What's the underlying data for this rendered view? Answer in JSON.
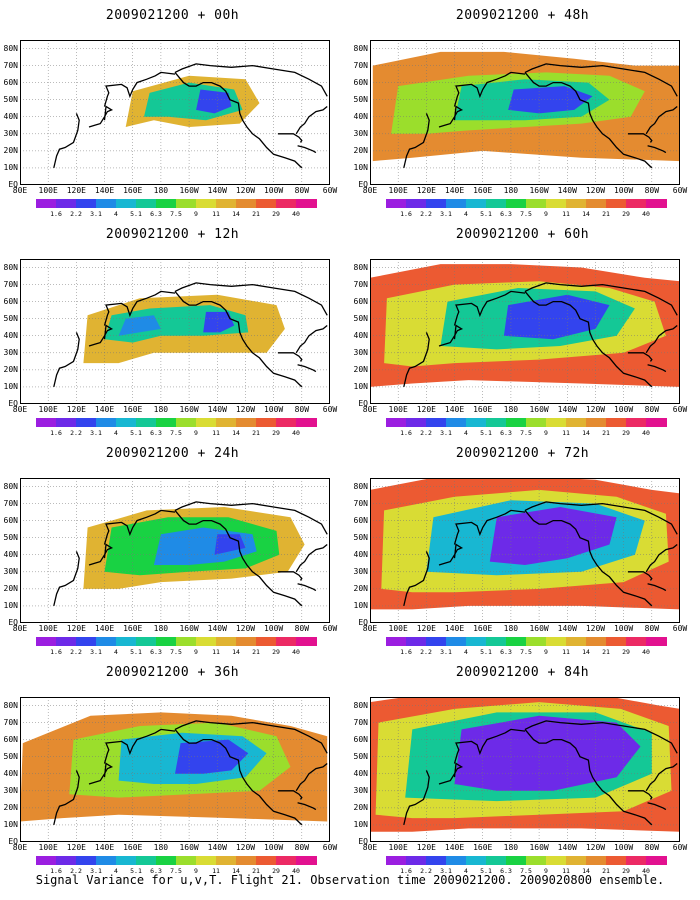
{
  "caption": "Signal Variance for u,v,T. Flight 21. Observation time 2009021200. 2009020800 ensemble.",
  "x_tick_labels": [
    "80E",
    "100E",
    "120E",
    "140E",
    "160E",
    "180",
    "160W",
    "140W",
    "120W",
    "100W",
    "80W",
    "60W"
  ],
  "y_tick_labels": [
    "80N",
    "70N",
    "60N",
    "50N",
    "40N",
    "30N",
    "20N",
    "10N",
    "EQ"
  ],
  "colorbar": {
    "labels": [
      "1.6",
      "2.2",
      "3.1",
      "4",
      "5.1",
      "6.3",
      "7.5",
      "9",
      "11",
      "14",
      "21",
      "29",
      "40"
    ],
    "colors": [
      "#9b1ee0",
      "#6d2ae8",
      "#3344ee",
      "#1f8be6",
      "#18b7d2",
      "#14c896",
      "#19d243",
      "#9bde2c",
      "#d9dc34",
      "#e0b332",
      "#e48b30",
      "#ec5a32",
      "#ec2a64",
      "#e2118f"
    ]
  },
  "panels": [
    {
      "title": "2009021200 + 00h",
      "col": 0,
      "row": 0
    },
    {
      "title": "2009021200 + 48h",
      "col": 1,
      "row": 0
    },
    {
      "title": "2009021200 + 12h",
      "col": 0,
      "row": 1
    },
    {
      "title": "2009021200 + 60h",
      "col": 1,
      "row": 1
    },
    {
      "title": "2009021200 + 24h",
      "col": 0,
      "row": 2
    },
    {
      "title": "2009021200 + 72h",
      "col": 1,
      "row": 2
    },
    {
      "title": "2009021200 + 36h",
      "col": 0,
      "row": 3
    },
    {
      "title": "2009021200 + 84h",
      "col": 1,
      "row": 3
    }
  ]
}
